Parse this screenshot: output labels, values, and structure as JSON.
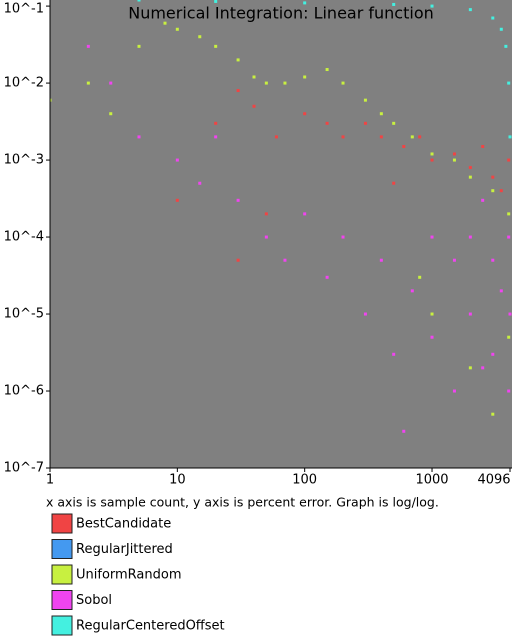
{
  "chart_data": {
    "type": "scatter",
    "title": "Numerical Integration: Linear function",
    "caption": "x axis is sample count, y axis is percent error. Graph is log/log.",
    "xscale": "log",
    "yscale": "log",
    "xlim": [
      1,
      4096
    ],
    "ylim": [
      1e-07,
      0.12
    ],
    "xticks": [
      1,
      10,
      100,
      1000,
      4096
    ],
    "yticks": [
      {
        "value": 0.1,
        "label": "10^-1"
      },
      {
        "value": 0.01,
        "label": "10^-2"
      },
      {
        "value": 0.001,
        "label": "10^-3"
      },
      {
        "value": 0.0001,
        "label": "10^-4"
      },
      {
        "value": 1e-05,
        "label": "10^-5"
      },
      {
        "value": 1e-06,
        "label": "10^-6"
      },
      {
        "value": 1e-07,
        "label": "10^-7"
      }
    ],
    "plot_background": "#808080",
    "series": [
      {
        "name": "BestCandidate",
        "color": "#f04444",
        "x": [
          20,
          30,
          40,
          60,
          100,
          150,
          200,
          300,
          400,
          600,
          800,
          1000,
          1500,
          2000,
          2500,
          3000,
          4000,
          10,
          50,
          500,
          3500,
          30,
          200
        ],
        "values": [
          0.003,
          0.008,
          0.005,
          0.002,
          0.004,
          0.003,
          0.002,
          0.003,
          0.002,
          0.0015,
          0.002,
          0.001,
          0.0012,
          0.0008,
          0.0015,
          0.0006,
          0.001,
          0.0003,
          0.0002,
          0.0005,
          0.0004,
          5e-05,
          0.0001
        ]
      },
      {
        "name": "RegularJittered",
        "color": "#4499f0",
        "x": [],
        "values": []
      },
      {
        "name": "UniformRandom",
        "color": "#c8f040",
        "x": [
          1,
          2,
          3,
          5,
          8,
          10,
          15,
          20,
          30,
          40,
          50,
          70,
          100,
          150,
          200,
          300,
          400,
          500,
          700,
          1000,
          1500,
          2000,
          3000,
          4000,
          1000,
          2000,
          3000,
          4000,
          800
        ],
        "values": [
          0.006,
          0.01,
          0.004,
          0.03,
          0.06,
          0.05,
          0.04,
          0.03,
          0.02,
          0.012,
          0.01,
          0.01,
          0.012,
          0.015,
          0.01,
          0.006,
          0.004,
          0.003,
          0.002,
          0.0012,
          0.001,
          0.0006,
          0.0004,
          0.0002,
          1e-05,
          2e-06,
          5e-07,
          5e-06,
          3e-05
        ]
      },
      {
        "name": "Sobol",
        "color": "#f044f0",
        "x": [
          2,
          3,
          5,
          10,
          15,
          20,
          30,
          50,
          70,
          100,
          150,
          200,
          300,
          400,
          500,
          700,
          1000,
          1000,
          1500,
          1500,
          2000,
          2000,
          2500,
          3000,
          3000,
          3500,
          4000,
          4000,
          4096,
          600,
          2500
        ],
        "values": [
          0.03,
          0.01,
          0.002,
          0.001,
          0.0005,
          0.002,
          0.0003,
          0.0001,
          5e-05,
          0.0002,
          3e-05,
          0.0001,
          1e-05,
          5e-05,
          3e-06,
          2e-05,
          0.0001,
          5e-06,
          5e-05,
          1e-06,
          0.0001,
          1e-05,
          2e-06,
          5e-05,
          3e-06,
          2e-05,
          0.0001,
          1e-06,
          1e-05,
          3e-07,
          0.0003
        ]
      },
      {
        "name": "RegularCenteredOffset",
        "color": "#44f0e0",
        "x": [
          5,
          20,
          100,
          500,
          1000,
          2000,
          3000,
          3500,
          3800,
          4000,
          4096
        ],
        "values": [
          0.12,
          0.115,
          0.11,
          0.105,
          0.1,
          0.09,
          0.07,
          0.05,
          0.03,
          0.01,
          0.002
        ]
      }
    ]
  }
}
